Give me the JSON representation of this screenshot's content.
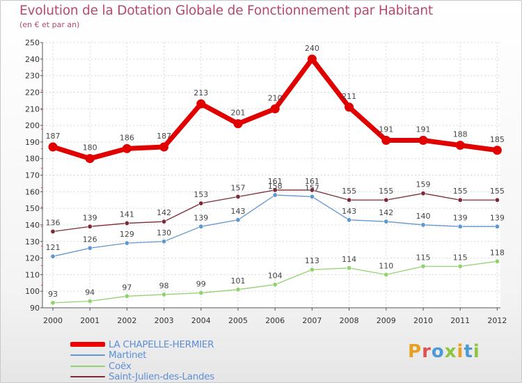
{
  "header": {
    "title": "Evolution de la Dotation Globale de Fonctionnement par Habitant",
    "subtitle": "(en € et par an)"
  },
  "logo": {
    "text": "Proxiti",
    "colors": [
      "#e8a020",
      "#e05050",
      "#4c9ad6",
      "#8cc63e",
      "#e8a020",
      "#4c9ad6",
      "#8cc63e"
    ]
  },
  "chart_data": {
    "type": "line",
    "title": "Evolution de la Dotation Globale de Fonctionnement par Habitant",
    "subtitle": "(en € et par an)",
    "xlabel": "",
    "ylabel": "",
    "x": [
      "2000",
      "2001",
      "2002",
      "2003",
      "2004",
      "2005",
      "2006",
      "2007",
      "2008",
      "2009",
      "2010",
      "2011",
      "2012"
    ],
    "ylim": [
      90,
      250
    ],
    "yticks": [
      90,
      100,
      110,
      120,
      130,
      140,
      150,
      160,
      170,
      180,
      190,
      200,
      210,
      220,
      230,
      240,
      250
    ],
    "grid": true,
    "legend_position": "bottom-left",
    "series": [
      {
        "name": "LA CHAPELLE-HERMIER",
        "color": "#ee0000",
        "values": [
          187,
          180,
          186,
          187,
          213,
          201,
          210,
          240,
          211,
          191,
          191,
          188,
          185
        ]
      },
      {
        "name": "Martinet",
        "color": "#5f98cf",
        "values": [
          121,
          126,
          129,
          130,
          139,
          143,
          158,
          157,
          143,
          142,
          140,
          139,
          139
        ]
      },
      {
        "name": "Coëx",
        "color": "#90d26e",
        "values": [
          93,
          94,
          97,
          98,
          99,
          101,
          104,
          113,
          114,
          110,
          115,
          115,
          118
        ]
      },
      {
        "name": "Saint-Julien-des-Landes",
        "color": "#7d2a35",
        "values": [
          136,
          139,
          141,
          142,
          153,
          157,
          161,
          161,
          155,
          155,
          159,
          155,
          155
        ]
      }
    ]
  }
}
